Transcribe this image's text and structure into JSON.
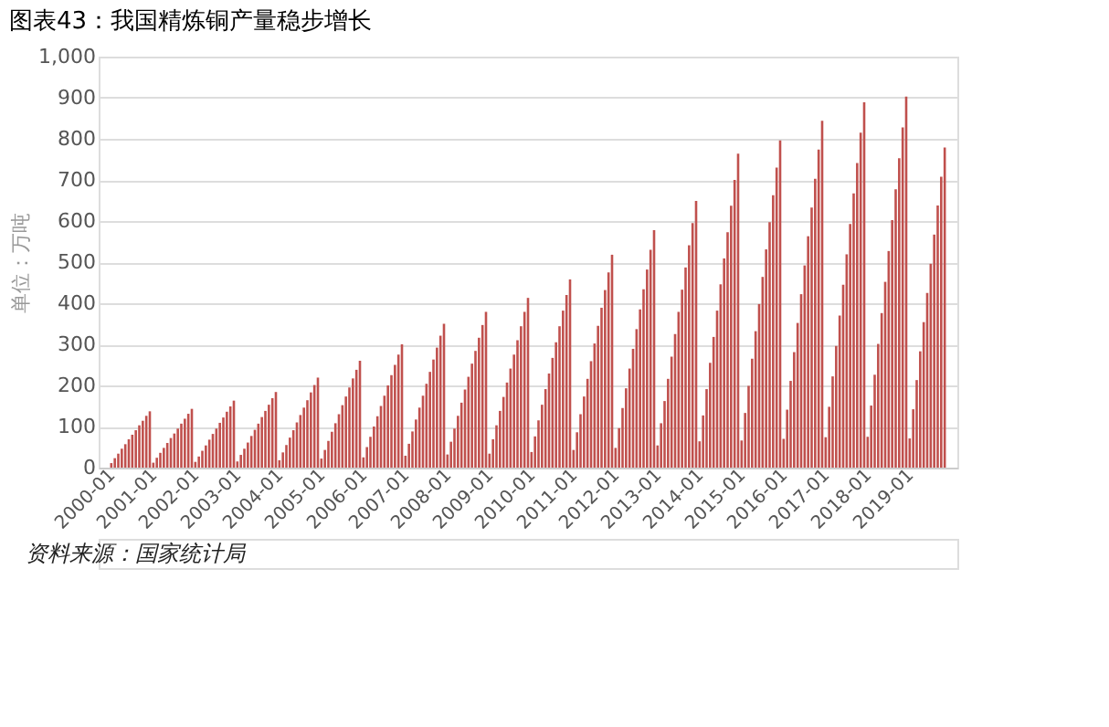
{
  "chart_data": {
    "type": "bar",
    "title": "图表43：我国精炼铜产量稳步增长",
    "ylabel": "单位：万吨",
    "categories": [
      "2000-01",
      null,
      null,
      null,
      null,
      null,
      null,
      null,
      null,
      null,
      null,
      null,
      "2001-01",
      null,
      null,
      null,
      null,
      null,
      null,
      null,
      null,
      null,
      null,
      null,
      "2002-01",
      null,
      null,
      null,
      null,
      null,
      null,
      null,
      null,
      null,
      null,
      null,
      "2003-01",
      null,
      null,
      null,
      null,
      null,
      null,
      null,
      null,
      null,
      null,
      null,
      "2004-01",
      null,
      null,
      null,
      null,
      null,
      null,
      null,
      null,
      null,
      null,
      null,
      "2005-01",
      null,
      null,
      null,
      null,
      null,
      null,
      null,
      null,
      null,
      null,
      null,
      "2006-01",
      null,
      null,
      null,
      null,
      null,
      null,
      null,
      null,
      null,
      null,
      null,
      "2007-01",
      null,
      null,
      null,
      null,
      null,
      null,
      null,
      null,
      null,
      null,
      null,
      "2008-01",
      null,
      null,
      null,
      null,
      null,
      null,
      null,
      null,
      null,
      null,
      null,
      "2009-01",
      null,
      null,
      null,
      null,
      null,
      null,
      null,
      null,
      null,
      null,
      null,
      "2010-01",
      null,
      null,
      null,
      null,
      null,
      null,
      null,
      null,
      null,
      null,
      null,
      "2011-01",
      null,
      null,
      null,
      null,
      null,
      null,
      null,
      null,
      null,
      null,
      null,
      "2012-01",
      null,
      null,
      null,
      null,
      null,
      null,
      null,
      null,
      null,
      null,
      null,
      "2013-01",
      null,
      null,
      null,
      null,
      null,
      null,
      null,
      null,
      null,
      null,
      null,
      "2014-01",
      null,
      null,
      null,
      null,
      null,
      null,
      null,
      null,
      null,
      null,
      null,
      "2015-01",
      null,
      null,
      null,
      null,
      null,
      null,
      null,
      null,
      null,
      null,
      null,
      "2016-01",
      null,
      null,
      null,
      null,
      null,
      null,
      null,
      null,
      null,
      null,
      null,
      "2017-01",
      null,
      null,
      null,
      null,
      null,
      null,
      null,
      null,
      null,
      null,
      null,
      "2018-01",
      null,
      null,
      null,
      null,
      null,
      null,
      null,
      null,
      null,
      null,
      null,
      "2019-01",
      null,
      null,
      null,
      null,
      null,
      null,
      null,
      null,
      null,
      null
    ],
    "values": [
      11,
      23,
      34,
      46,
      57,
      69,
      80,
      91,
      103,
      114,
      126,
      137,
      12,
      24,
      36,
      48,
      60,
      72,
      83,
      95,
      107,
      119,
      131,
      143,
      14,
      27,
      41,
      54,
      68,
      82,
      95,
      109,
      122,
      136,
      149,
      163,
      15,
      31,
      46,
      61,
      77,
      92,
      107,
      123,
      138,
      153,
      169,
      184,
      18,
      37,
      55,
      73,
      91,
      110,
      128,
      146,
      164,
      183,
      201,
      219,
      22,
      43,
      65,
      87,
      108,
      130,
      152,
      173,
      195,
      217,
      238,
      260,
      25,
      50,
      75,
      100,
      125,
      150,
      175,
      200,
      225,
      250,
      275,
      300,
      29,
      58,
      88,
      117,
      146,
      175,
      204,
      233,
      263,
      292,
      321,
      350,
      32,
      63,
      95,
      126,
      158,
      190,
      221,
      253,
      284,
      316,
      347,
      379,
      34,
      69,
      103,
      138,
      172,
      207,
      241,
      275,
      310,
      344,
      379,
      413,
      38,
      76,
      115,
      153,
      191,
      229,
      267,
      305,
      344,
      382,
      420,
      458,
      43,
      86,
      130,
      173,
      216,
      259,
      302,
      345,
      389,
      432,
      475,
      518,
      48,
      96,
      145,
      193,
      241,
      289,
      337,
      385,
      434,
      482,
      530,
      578,
      54,
      108,
      162,
      216,
      270,
      325,
      379,
      433,
      487,
      541,
      595,
      649,
      64,
      127,
      191,
      255,
      318,
      382,
      446,
      509,
      573,
      637,
      700,
      764,
      66,
      133,
      199,
      265,
      332,
      398,
      464,
      531,
      597,
      663,
      730,
      796,
      70,
      141,
      211,
      281,
      352,
      422,
      492,
      563,
      633,
      703,
      774,
      844,
      74,
      148,
      222,
      296,
      370,
      445,
      519,
      593,
      667,
      741,
      815,
      889,
      75,
      151,
      226,
      301,
      376,
      452,
      527,
      602,
      677,
      753,
      828,
      903,
      71,
      142,
      213,
      283,
      354,
      425,
      496,
      567,
      638,
      708,
      779
    ],
    "color": "#c0504d",
    "ylim": [
      0,
      1000
    ],
    "yticks": [
      0,
      100,
      200,
      300,
      400,
      500,
      600,
      700,
      800,
      900,
      {
        "value": 1000,
        "label": "1,000"
      }
    ],
    "grid": "y",
    "annotations": [
      "资料来源：国家统计局"
    ]
  }
}
